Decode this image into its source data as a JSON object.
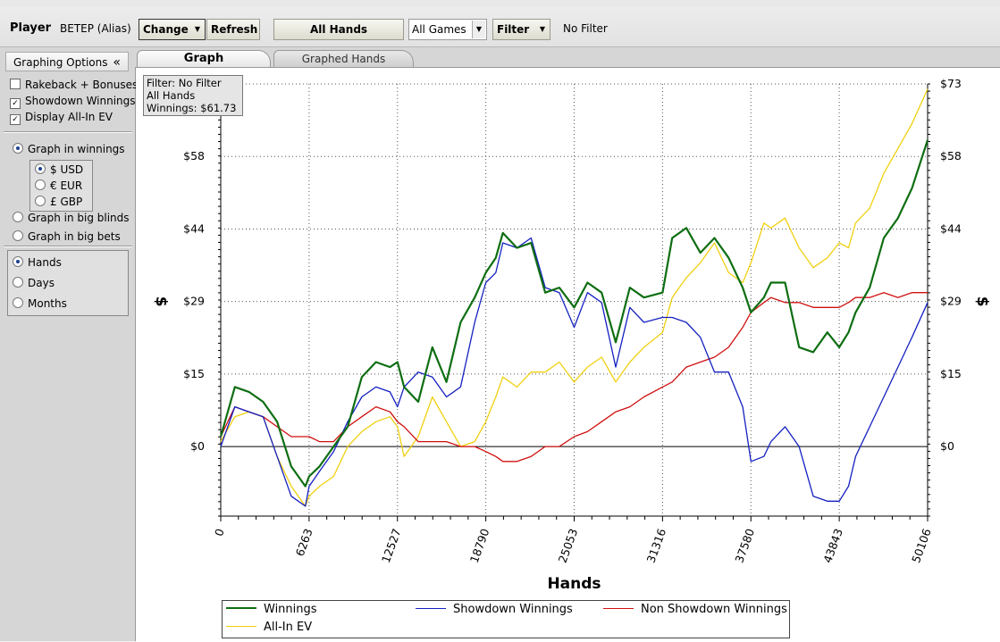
{
  "toolbar": {
    "player_label": "Player",
    "player_name": "BETEP (Alias)",
    "change_label": "Change",
    "refresh_label": "Refresh",
    "all_hands_label": "All Hands",
    "games_select": "All Games",
    "filter_label": "Filter",
    "filter_status": "No Filter"
  },
  "sidebar": {
    "header": "Graphing Options",
    "collapse": "«",
    "options": {
      "rakeback": {
        "label": "Rakeback + Bonuses",
        "checked": false
      },
      "showdown": {
        "label": "Showdown Winnings",
        "checked": true
      },
      "allin": {
        "label": "Display All-In EV",
        "checked": true
      }
    },
    "graph_in_winnings": "Graph in winnings",
    "currencies": [
      "$ USD",
      "€ EUR",
      "£ GBP"
    ],
    "selected_currency": "$ USD",
    "graph_in_big_blinds": "Graph in big blinds",
    "graph_in_big_bets": "Graph in big bets",
    "x_modes": [
      "Hands",
      "Days",
      "Months"
    ],
    "selected_x_mode": "Hands"
  },
  "tabs": [
    "Graph",
    "Graphed Hands"
  ],
  "active_tab": "Graph",
  "info_box": {
    "line1": "Filter: No Filter",
    "line2": "All Hands",
    "line3": "Winnings: $61.73"
  },
  "colors": {
    "winnings": "#0e6e12",
    "showdown": "#1420c0",
    "non_showdown": "#d01010",
    "allin_ev": "#f0d010"
  },
  "chart_data": {
    "type": "line",
    "xlabel": "Hands",
    "ylabel": "$",
    "x_ticks": [
      0,
      6263,
      12527,
      18790,
      25053,
      31316,
      37580,
      43843,
      50106
    ],
    "y_ticks": [
      {
        "value": 0,
        "label": "$0"
      },
      {
        "value": 14.6,
        "label": "$15"
      },
      {
        "value": 29.2,
        "label": "$29"
      },
      {
        "value": 43.8,
        "label": "$44"
      },
      {
        "value": 58.4,
        "label": "$58"
      },
      {
        "value": 73,
        "label": "$73"
      }
    ],
    "xlim": [
      0,
      50106
    ],
    "ylim": [
      -14,
      73
    ],
    "grid": true,
    "legend_position": "bottom",
    "series": [
      {
        "name": "Winnings",
        "key": "winnings",
        "x": [
          0,
          1000,
          2000,
          3000,
          4000,
          5000,
          6000,
          6263,
          7000,
          8000,
          9000,
          10000,
          11000,
          12000,
          12527,
          13000,
          14000,
          15000,
          16000,
          17000,
          18000,
          18790,
          19500,
          20000,
          21000,
          22000,
          23000,
          24000,
          25053,
          26000,
          27000,
          28000,
          29000,
          30000,
          31316,
          32000,
          33000,
          34000,
          35000,
          36000,
          37000,
          37580,
          38500,
          39000,
          40000,
          41000,
          42000,
          43000,
          43843,
          44500,
          45000,
          46000,
          47000,
          48000,
          49000,
          50106
        ],
        "y": [
          2,
          12,
          11,
          9,
          5,
          -4,
          -8,
          -6,
          -4,
          0,
          4,
          14,
          17,
          16,
          17,
          12,
          9,
          20,
          13,
          25,
          30,
          35,
          38,
          43,
          40,
          41,
          31,
          32,
          28,
          33,
          31,
          21,
          32,
          30,
          31,
          42,
          44,
          39,
          42,
          38,
          32,
          27,
          30,
          33,
          33,
          20,
          19,
          23,
          20,
          23,
          27,
          32,
          42,
          46,
          52,
          61.7
        ]
      },
      {
        "name": "Showdown Winnings",
        "key": "showdown",
        "x": [
          0,
          1000,
          2000,
          3000,
          4000,
          5000,
          6000,
          6263,
          7000,
          8000,
          9000,
          10000,
          11000,
          12000,
          12527,
          13000,
          14000,
          15000,
          16000,
          17000,
          18000,
          18790,
          19500,
          20000,
          21000,
          22000,
          23000,
          24000,
          25053,
          26000,
          27000,
          28000,
          29000,
          30000,
          31316,
          32000,
          33000,
          34000,
          35000,
          36000,
          37000,
          37580,
          38500,
          39000,
          40000,
          41000,
          42000,
          43000,
          43843,
          44500,
          45000,
          46000,
          47000,
          48000,
          49000,
          50106
        ],
        "y": [
          0,
          8,
          7,
          6,
          -2,
          -10,
          -12,
          -8,
          -5,
          -1,
          5,
          10,
          12,
          11,
          8,
          12,
          15,
          14,
          10,
          12,
          25,
          33,
          35,
          41,
          40,
          42,
          32,
          31,
          24,
          31,
          29,
          16,
          28,
          25,
          26,
          26,
          25,
          22,
          15,
          15,
          8,
          -3,
          -2,
          1,
          4,
          0,
          -10,
          -11,
          -11,
          -8,
          -2,
          4,
          10,
          16,
          22,
          29
        ]
      },
      {
        "name": "Non Showdown Winnings",
        "key": "non_showdown",
        "x": [
          0,
          1000,
          2000,
          3000,
          4000,
          5000,
          6000,
          6263,
          7000,
          8000,
          9000,
          10000,
          11000,
          12000,
          12527,
          13000,
          14000,
          15000,
          16000,
          17000,
          18000,
          18790,
          19500,
          20000,
          21000,
          22000,
          23000,
          24000,
          25053,
          26000,
          27000,
          28000,
          29000,
          30000,
          31316,
          32000,
          33000,
          34000,
          35000,
          36000,
          37000,
          37580,
          38500,
          39000,
          40000,
          41000,
          42000,
          43000,
          43843,
          44500,
          45000,
          46000,
          47000,
          48000,
          49000,
          50106
        ],
        "y": [
          2,
          8,
          7,
          6,
          4,
          2,
          2,
          2,
          1,
          1,
          4,
          6,
          8,
          7,
          5,
          4,
          1,
          1,
          1,
          0,
          0,
          -1,
          -2,
          -3,
          -3,
          -2,
          0,
          0,
          2,
          3,
          5,
          7,
          8,
          10,
          12,
          13,
          16,
          17,
          18,
          20,
          24,
          27,
          29,
          30,
          29,
          29,
          28,
          28,
          28,
          29,
          30,
          30,
          31,
          30,
          31,
          31
        ]
      },
      {
        "name": "All-In EV",
        "key": "allin_ev",
        "x": [
          0,
          1000,
          2000,
          3000,
          4000,
          5000,
          6000,
          6263,
          7000,
          8000,
          9000,
          10000,
          11000,
          12000,
          12527,
          13000,
          14000,
          15000,
          16000,
          17000,
          18000,
          18790,
          19500,
          20000,
          21000,
          22000,
          23000,
          24000,
          25053,
          26000,
          27000,
          28000,
          29000,
          30000,
          31316,
          32000,
          33000,
          34000,
          35000,
          36000,
          37000,
          37580,
          38500,
          39000,
          40000,
          41000,
          42000,
          43000,
          43843,
          44500,
          45000,
          46000,
          47000,
          48000,
          49000,
          50106
        ],
        "y": [
          1,
          6,
          7,
          6,
          -2,
          -8,
          -12,
          -10,
          -8,
          -6,
          0,
          3,
          5,
          6,
          4,
          -2,
          2,
          10,
          5,
          0,
          1,
          5,
          10,
          14,
          12,
          15,
          15,
          17,
          13,
          16,
          18,
          13,
          17,
          20,
          23,
          30,
          34,
          37,
          41,
          35,
          33,
          37,
          45,
          44,
          46,
          40,
          36,
          38,
          41,
          40,
          45,
          48,
          55,
          60,
          65,
          72
        ]
      }
    ]
  }
}
